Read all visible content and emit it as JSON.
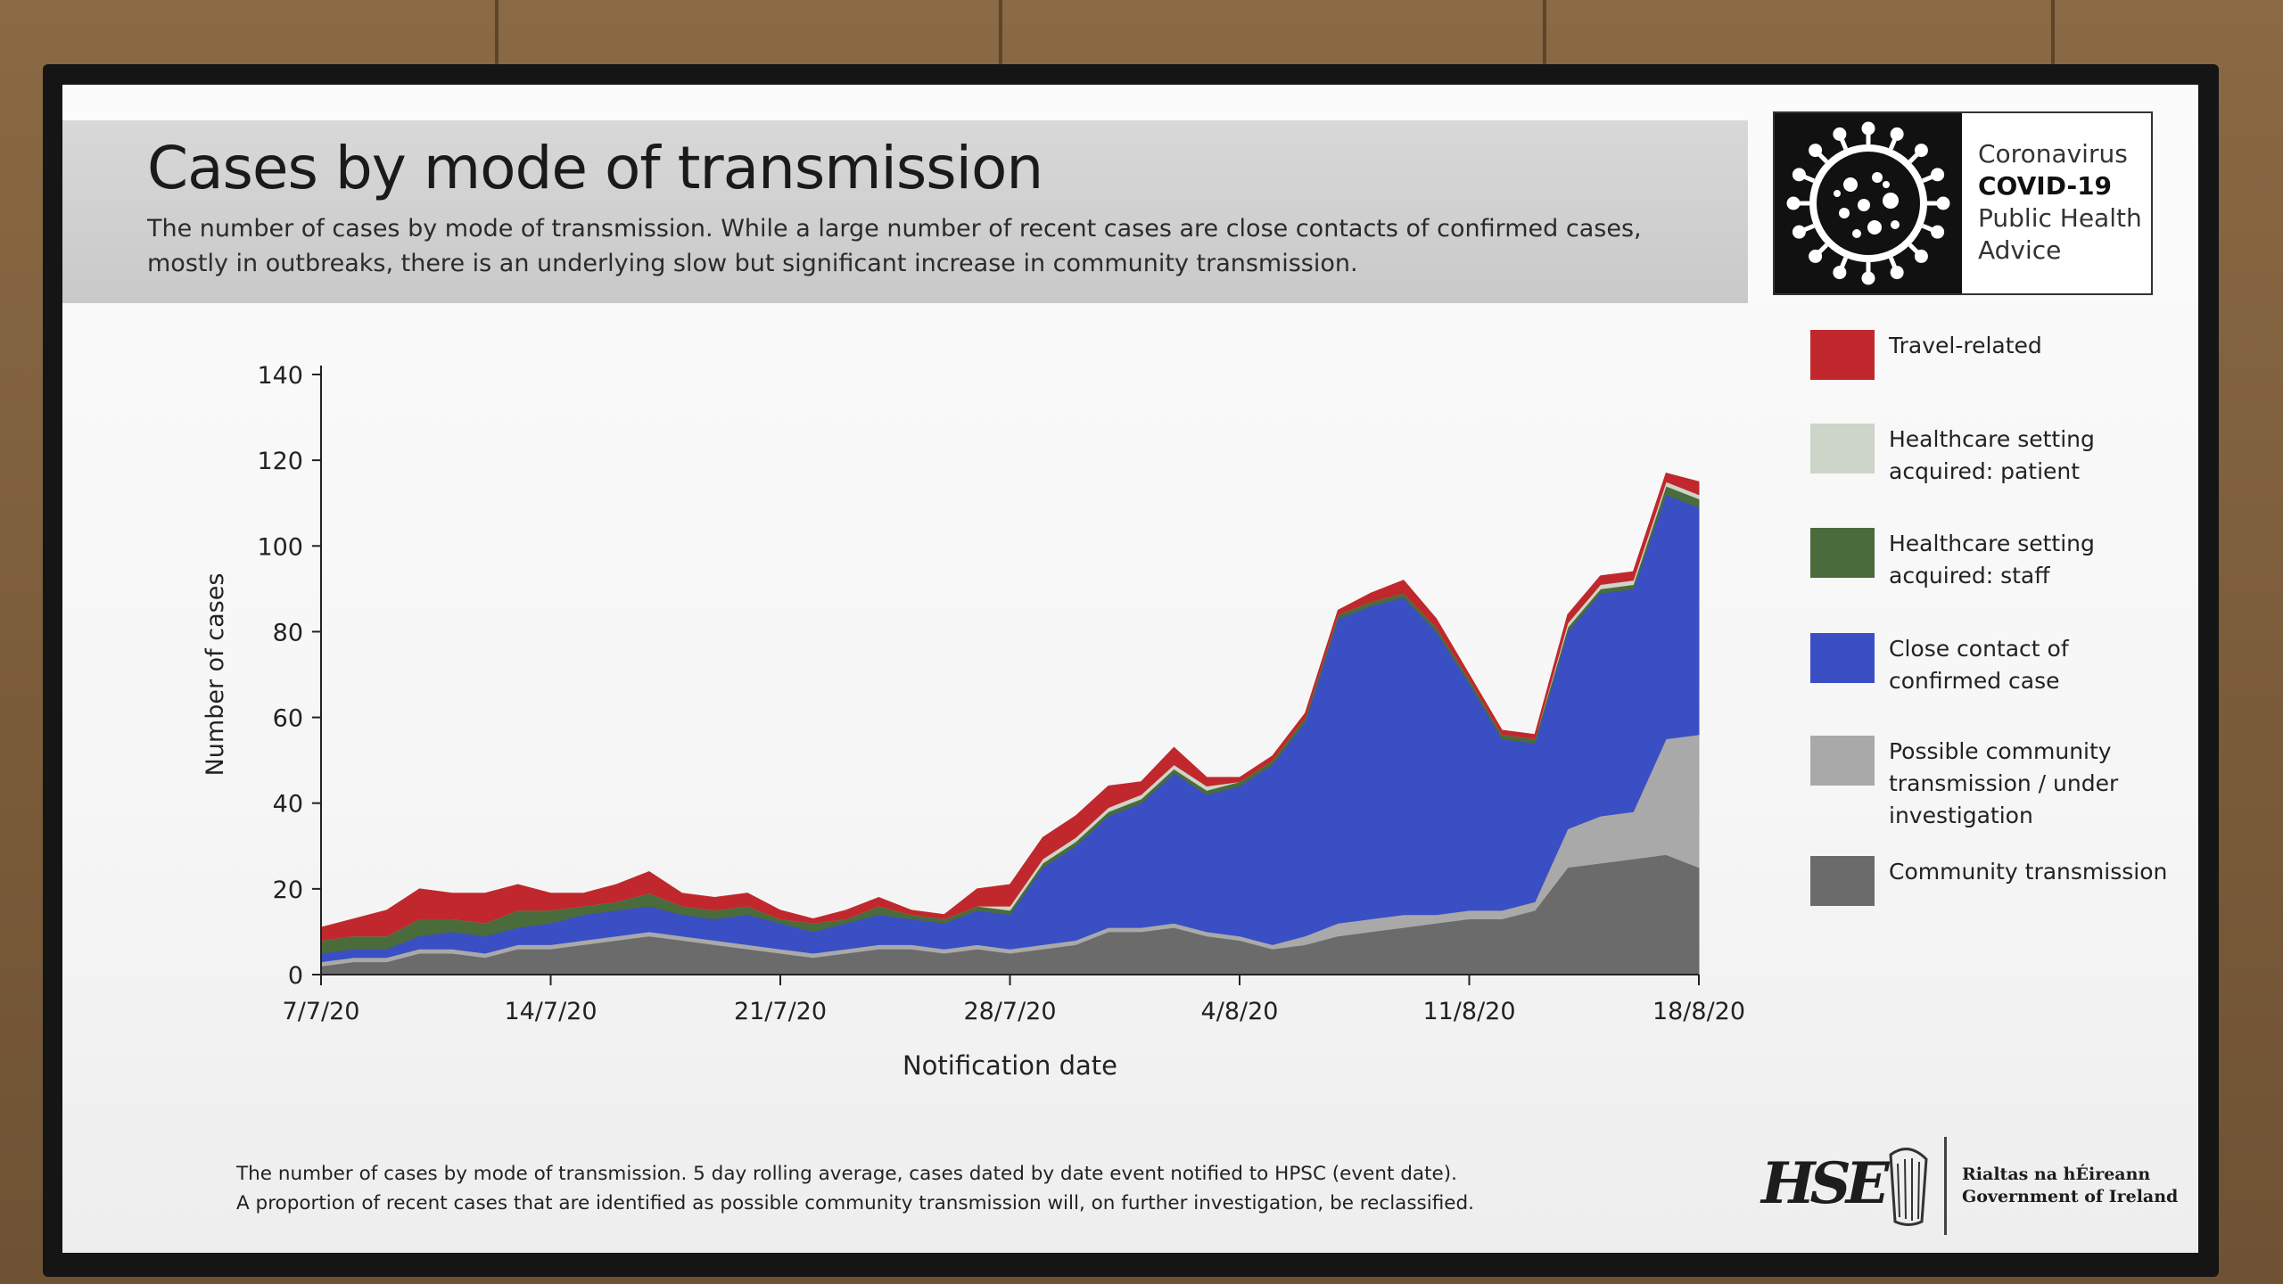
{
  "slide": {
    "title": "Cases by mode of transmission",
    "subtitle_line1": "The number of cases by mode of transmission. While a large number of recent cases are close contacts of confirmed cases,",
    "subtitle_line2": "mostly in outbreaks, there is an underlying slow but significant increase in community transmission.",
    "footnote_line1": "The number of cases by mode of transmission. 5 day rolling average, cases dated by date event notified to HPSC (event date).",
    "footnote_line2": "A proportion of recent cases that are identified as possible community transmission will, on further investigation, be reclassified."
  },
  "badge": {
    "line1": "Coronavirus",
    "line2": "COVID-19",
    "line3": "Public Health",
    "line4": "Advice",
    "icon": "coronavirus-icon"
  },
  "logos": {
    "hse": "HSE",
    "gov_line1": "Rialtas na hÉireann",
    "gov_line2": "Government of Ireland",
    "harp_icon": "harp-icon"
  },
  "legend": [
    {
      "label_line1": "Travel-related",
      "label_line2": "",
      "color": "#c0282d"
    },
    {
      "label_line1": "Healthcare setting",
      "label_line2": "acquired: patient",
      "color": "#cdd4c8"
    },
    {
      "label_line1": "Healthcare setting",
      "label_line2": "acquired: staff",
      "color": "#4a6b3c"
    },
    {
      "label_line1": "Close contact of",
      "label_line2": "confirmed case",
      "color": "#3a4fc4"
    },
    {
      "label_line1": "Possible community",
      "label_line2": "transmission / under",
      "label_line3": "investigation",
      "color": "#a9a9a9"
    },
    {
      "label_line1": "Community transmission",
      "label_line2": "",
      "color": "#6b6b6b"
    }
  ],
  "chart_data": {
    "type": "area",
    "stacked": true,
    "xlabel": "Notification date",
    "ylabel": "Number of cases",
    "ylim": [
      0,
      140
    ],
    "yticks": [
      0,
      20,
      40,
      60,
      80,
      100,
      120,
      140
    ],
    "xtick_labels": [
      "7/7/20",
      "14/7/20",
      "21/7/20",
      "28/7/20",
      "4/8/20",
      "11/8/20",
      "18/8/20"
    ],
    "x": [
      "7/7/20",
      "8/7/20",
      "9/7/20",
      "10/7/20",
      "11/7/20",
      "12/7/20",
      "13/7/20",
      "14/7/20",
      "15/7/20",
      "16/7/20",
      "17/7/20",
      "18/7/20",
      "19/7/20",
      "20/7/20",
      "21/7/20",
      "22/7/20",
      "23/7/20",
      "24/7/20",
      "25/7/20",
      "26/7/20",
      "27/7/20",
      "28/7/20",
      "29/7/20",
      "30/7/20",
      "31/7/20",
      "1/8/20",
      "2/8/20",
      "3/8/20",
      "4/8/20",
      "5/8/20",
      "6/8/20",
      "7/8/20",
      "8/8/20",
      "9/8/20",
      "10/8/20",
      "11/8/20",
      "12/8/20",
      "13/8/20",
      "14/8/20",
      "15/8/20",
      "16/8/20",
      "17/8/20",
      "18/8/20"
    ],
    "series": [
      {
        "name": "Community transmission",
        "color": "#6b6b6b",
        "values": [
          2,
          3,
          3,
          5,
          5,
          4,
          6,
          6,
          7,
          8,
          9,
          8,
          7,
          6,
          5,
          4,
          5,
          6,
          6,
          5,
          6,
          5,
          6,
          7,
          10,
          10,
          11,
          9,
          8,
          6,
          7,
          9,
          10,
          11,
          12,
          13,
          13,
          15,
          25,
          26,
          27,
          28,
          25
        ]
      },
      {
        "name": "Possible community transmission / under investigation",
        "color": "#a9a9a9",
        "values": [
          1,
          1,
          1,
          1,
          1,
          1,
          1,
          1,
          1,
          1,
          1,
          1,
          1,
          1,
          1,
          1,
          1,
          1,
          1,
          1,
          1,
          1,
          1,
          1,
          1,
          1,
          1,
          1,
          1,
          1,
          2,
          3,
          3,
          3,
          2,
          2,
          2,
          2,
          9,
          11,
          11,
          27,
          31
        ]
      },
      {
        "name": "Close contact of confirmed case",
        "color": "#3a4fc4",
        "values": [
          2,
          2,
          2,
          3,
          4,
          4,
          4,
          5,
          6,
          6,
          6,
          5,
          5,
          7,
          6,
          5,
          6,
          7,
          6,
          6,
          8,
          8,
          18,
          22,
          26,
          29,
          35,
          32,
          35,
          42,
          50,
          71,
          73,
          74,
          66,
          53,
          40,
          37,
          46,
          52,
          52,
          57,
          53
        ]
      },
      {
        "name": "Healthcare setting acquired: staff",
        "color": "#4a6b3c",
        "values": [
          3,
          3,
          3,
          4,
          3,
          3,
          4,
          3,
          2,
          2,
          3,
          2,
          2,
          2,
          1,
          2,
          1,
          2,
          1,
          1,
          1,
          1,
          1,
          1,
          1,
          1,
          1,
          1,
          1,
          1,
          1,
          1,
          1,
          1,
          1,
          1,
          1,
          1,
          1,
          1,
          1,
          2,
          2
        ]
      },
      {
        "name": "Healthcare setting acquired: patient",
        "color": "#cdd4c8",
        "values": [
          0,
          0,
          0,
          0,
          0,
          0,
          0,
          0,
          0,
          0,
          0,
          0,
          0,
          0,
          0,
          0,
          0,
          0,
          0,
          0,
          0,
          1,
          1,
          1,
          1,
          1,
          1,
          1,
          0,
          0,
          0,
          0,
          0,
          0,
          0,
          0,
          0,
          0,
          1,
          1,
          1,
          1,
          1
        ]
      },
      {
        "name": "Travel-related",
        "color": "#c0282d",
        "values": [
          3,
          4,
          6,
          7,
          6,
          7,
          6,
          4,
          3,
          4,
          5,
          3,
          3,
          3,
          2,
          1,
          2,
          2,
          1,
          1,
          4,
          5,
          5,
          5,
          5,
          3,
          4,
          2,
          1,
          1,
          1,
          1,
          2,
          3,
          2,
          1,
          1,
          1,
          2,
          2,
          2,
          2,
          3
        ]
      }
    ]
  }
}
